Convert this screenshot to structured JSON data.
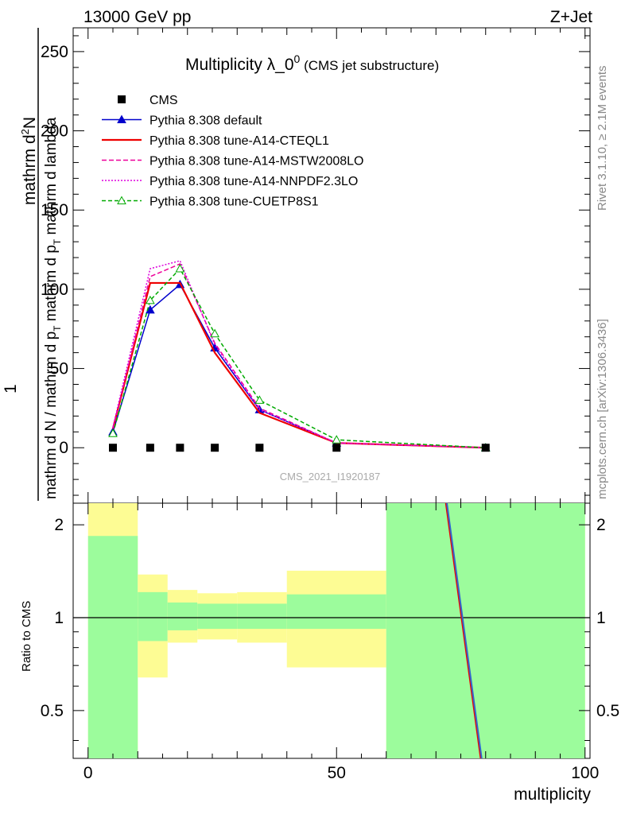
{
  "header": {
    "left": "13000 GeV pp",
    "right": "Z+Jet"
  },
  "title": {
    "main": "Multiplicity λ_0",
    "sup": "0",
    "note": " (CMS jet substructure)"
  },
  "side_labels": {
    "rivet": "Rivet 3.1.10, ≥ 2.1M events",
    "mcplots": "mcplots.cern.ch [arXiv:1306.3436]"
  },
  "watermark": "CMS_2021_I1920187",
  "upper_ylabel": {
    "numerator_1": "1",
    "numerator_2": "mathrm d",
    "numerator_2_sup": "2",
    "numerator_2_tail": "N",
    "denominator": "mathrm d N / mathrm d p",
    "denominator_sub": "T",
    "denominator_tail": " mathrm d p",
    "denominator_sub2": "T",
    "denominator_end": " mathrm d lambda"
  },
  "lower_ylabel": "Ratio to CMS",
  "xlabel": "multiplicity",
  "chart_data": [
    {
      "type": "line",
      "panel": "main",
      "xlim": [
        -3,
        101
      ],
      "ylim": [
        -35,
        265
      ],
      "yticks": [
        0,
        50,
        100,
        150,
        200,
        250
      ],
      "xticks": [
        0,
        50,
        100
      ],
      "series": [
        {
          "name": "CMS",
          "style": "data",
          "color": "#000000",
          "x": [
            5,
            12.5,
            18.5,
            25.5,
            34.5,
            50,
            80
          ],
          "y": [
            0,
            0,
            0,
            0,
            0,
            0,
            0
          ]
        },
        {
          "name": "Pythia 8.308 default",
          "style": "solid-triangle",
          "color": "#0000cc",
          "x": [
            5,
            12.5,
            18.5,
            25.5,
            34.5,
            50,
            80
          ],
          "y": [
            10,
            87,
            103,
            63,
            24,
            3,
            0
          ]
        },
        {
          "name": "Pythia 8.308 tune-A14-CTEQL1",
          "style": "solid",
          "color": "#ee0000",
          "x": [
            5,
            12.5,
            18.5,
            25.5,
            34.5,
            50,
            80
          ],
          "y": [
            12,
            104,
            104,
            60,
            22,
            3,
            0
          ]
        },
        {
          "name": "Pythia 8.308 tune-A14-MSTW2008LO",
          "style": "dashed",
          "color": "#ee0099",
          "x": [
            5,
            12.5,
            18.5,
            25.5,
            34.5,
            50,
            80
          ],
          "y": [
            12,
            108,
            116,
            66,
            25,
            3,
            0
          ]
        },
        {
          "name": "Pythia 8.308 tune-A14-NNPDF2.3LO",
          "style": "dotted",
          "color": "#dd00dd",
          "x": [
            5,
            12.5,
            18.5,
            25.5,
            34.5,
            50,
            80
          ],
          "y": [
            13,
            113,
            118,
            65,
            24,
            3,
            0
          ]
        },
        {
          "name": "Pythia 8.308 tune-CUETP8S1",
          "style": "dashed-open-triangle",
          "color": "#00aa00",
          "x": [
            5,
            12.5,
            18.5,
            25.5,
            34.5,
            50,
            80
          ],
          "y": [
            9,
            93,
            113,
            72,
            30,
            5,
            0
          ]
        }
      ]
    },
    {
      "type": "area",
      "panel": "ratio",
      "log_scale": true,
      "ylim": [
        0.35,
        2.35
      ],
      "yticks": [
        0.5,
        1,
        2
      ],
      "bands": [
        {
          "x0": 0,
          "x1": 10,
          "y_lo": 0.35,
          "y_hi": 1.84,
          "y_lo2": 0.35,
          "y_hi2": 2.35
        },
        {
          "x0": 10,
          "x1": 16,
          "y_lo": 0.84,
          "y_hi": 1.21,
          "y_lo2": 0.64,
          "y_hi2": 1.38
        },
        {
          "x0": 16,
          "x1": 22,
          "y_lo": 0.91,
          "y_hi": 1.12,
          "y_lo2": 0.83,
          "y_hi2": 1.23
        },
        {
          "x0": 22,
          "x1": 30,
          "y_lo": 0.92,
          "y_hi": 1.11,
          "y_lo2": 0.85,
          "y_hi2": 1.2
        },
        {
          "x0": 30,
          "x1": 40,
          "y_lo": 0.92,
          "y_hi": 1.11,
          "y_lo2": 0.83,
          "y_hi2": 1.21
        },
        {
          "x0": 40,
          "x1": 60,
          "y_lo": 0.92,
          "y_hi": 1.19,
          "y_lo2": 0.69,
          "y_hi2": 1.42
        },
        {
          "x0": 60,
          "x1": 100,
          "y_lo": 0.35,
          "y_hi": 2.35,
          "y_lo2": 0.35,
          "y_hi2": 2.35
        }
      ],
      "reference_line": 1,
      "ratio_lines": [
        {
          "color": "#ee0000",
          "x": [
            72,
            79
          ],
          "y": [
            2.35,
            0.35
          ]
        },
        {
          "color": "#3366cc",
          "x": [
            72.2,
            79.2
          ],
          "y": [
            2.35,
            0.35
          ]
        }
      ],
      "colors": {
        "inner": "#9cfc9c",
        "outer": "#fdfc94"
      }
    }
  ]
}
